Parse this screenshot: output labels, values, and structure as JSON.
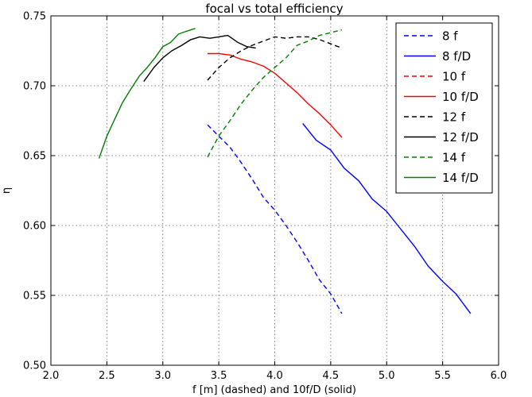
{
  "chart_data": {
    "type": "line",
    "title": "focal vs total efficiency",
    "xlabel": "f [m] (dashed) and 10f/D (solid)",
    "ylabel": "η",
    "xlim": [
      2.0,
      6.0
    ],
    "ylim": [
      0.5,
      0.75
    ],
    "xticks": [
      "2.0",
      "2.5",
      "3.0",
      "3.5",
      "4.0",
      "4.5",
      "5.0",
      "5.5",
      "6.0"
    ],
    "yticks": [
      "0.50",
      "0.55",
      "0.60",
      "0.65",
      "0.70",
      "0.75"
    ],
    "grid": true,
    "legend_position": "top-right",
    "series": [
      {
        "name": "8 f",
        "color": "#0000ff",
        "dash": "dashed",
        "x": [
          3.4,
          3.5,
          3.6,
          3.7,
          3.8,
          3.9,
          4.0,
          4.1,
          4.2,
          4.3,
          4.4,
          4.5,
          4.6
        ],
        "y": [
          0.672,
          0.664,
          0.656,
          0.645,
          0.633,
          0.62,
          0.611,
          0.6,
          0.588,
          0.575,
          0.561,
          0.551,
          0.537
        ]
      },
      {
        "name": "8 f/D",
        "color": "#0000ff",
        "dash": "solid",
        "x": [
          4.25,
          4.37,
          4.5,
          4.62,
          4.75,
          4.87,
          5.0,
          5.12,
          5.25,
          5.37,
          5.5,
          5.62,
          5.75
        ],
        "y": [
          0.673,
          0.661,
          0.654,
          0.641,
          0.632,
          0.619,
          0.61,
          0.598,
          0.585,
          0.571,
          0.56,
          0.551,
          0.537
        ]
      },
      {
        "name": "10 f",
        "color": "#ff0000",
        "dash": "dashed",
        "x": [],
        "y": []
      },
      {
        "name": "10 f/D",
        "color": "#ff0000",
        "dash": "solid",
        "x": [
          3.4,
          3.5,
          3.6,
          3.7,
          3.8,
          3.9,
          4.0,
          4.1,
          4.2,
          4.3,
          4.4,
          4.5,
          4.6
        ],
        "y": [
          0.723,
          0.723,
          0.722,
          0.719,
          0.717,
          0.714,
          0.709,
          0.702,
          0.695,
          0.687,
          0.68,
          0.672,
          0.663
        ]
      },
      {
        "name": "12 f",
        "color": "#000000",
        "dash": "dashed",
        "x": [
          3.4,
          3.5,
          3.6,
          3.7,
          3.8,
          3.9,
          4.0,
          4.1,
          4.2,
          4.3,
          4.4,
          4.5,
          4.6
        ],
        "y": [
          0.704,
          0.713,
          0.72,
          0.725,
          0.729,
          0.732,
          0.735,
          0.734,
          0.735,
          0.735,
          0.733,
          0.73,
          0.727
        ]
      },
      {
        "name": "12 f/D",
        "color": "#000000",
        "dash": "solid",
        "x": [
          2.83,
          2.92,
          3.0,
          3.08,
          3.17,
          3.25,
          3.33,
          3.42,
          3.5,
          3.58,
          3.67,
          3.75,
          3.83
        ],
        "y": [
          0.703,
          0.713,
          0.72,
          0.725,
          0.729,
          0.733,
          0.735,
          0.734,
          0.735,
          0.736,
          0.731,
          0.728,
          0.727
        ]
      },
      {
        "name": "14 f",
        "color": "#008000",
        "dash": "dashed",
        "x": [
          3.4,
          3.5,
          3.6,
          3.7,
          3.8,
          3.9,
          4.0,
          4.1,
          4.2,
          4.3,
          4.4,
          4.5,
          4.6
        ],
        "y": [
          0.649,
          0.664,
          0.675,
          0.687,
          0.697,
          0.706,
          0.713,
          0.72,
          0.729,
          0.732,
          0.736,
          0.738,
          0.74
        ]
      },
      {
        "name": "14 f/D",
        "color": "#008000",
        "dash": "solid",
        "x": [
          2.43,
          2.5,
          2.57,
          2.64,
          2.71,
          2.79,
          2.86,
          2.93,
          3.0,
          3.07,
          3.14,
          3.21,
          3.29
        ],
        "y": [
          0.648,
          0.664,
          0.676,
          0.688,
          0.697,
          0.707,
          0.713,
          0.72,
          0.728,
          0.731,
          0.737,
          0.739,
          0.741
        ]
      }
    ]
  }
}
